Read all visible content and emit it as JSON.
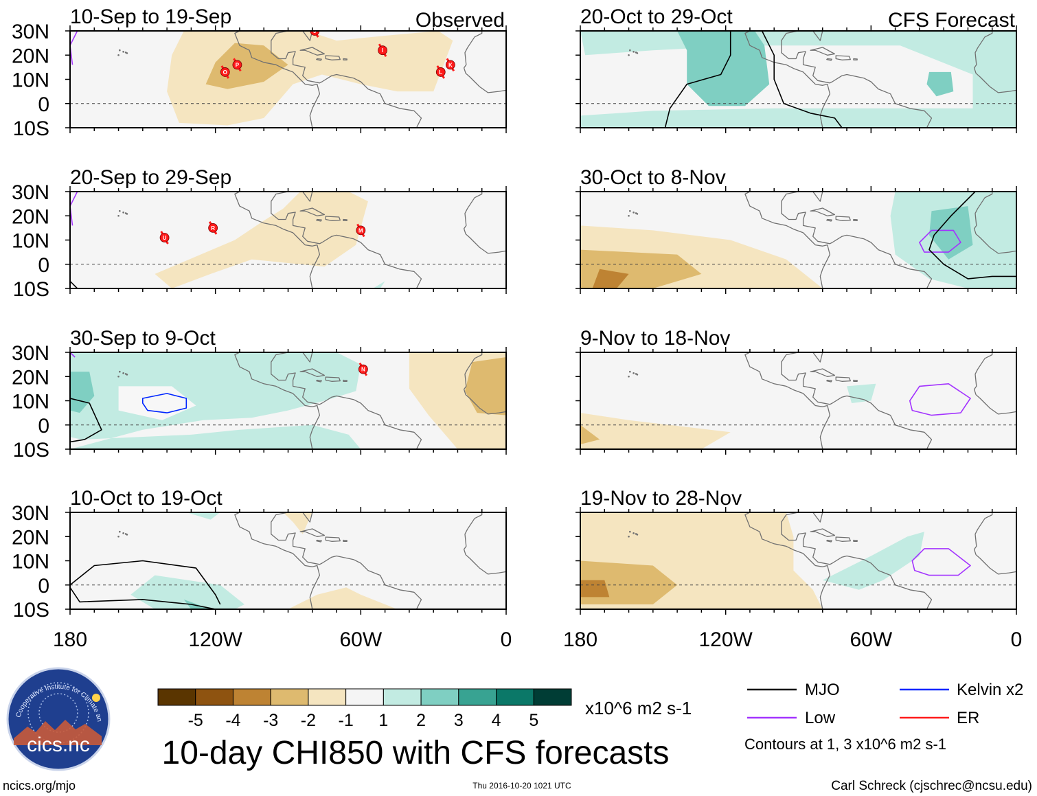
{
  "colors": {
    "brown": [
      "#5a3500",
      "#8e5310",
      "#be8333",
      "#deba6f",
      "#f5e5c0"
    ],
    "neutral": "#f5f5f5",
    "teal": [
      "#c2ebe2",
      "#7fcfc2",
      "#38a392",
      "#0b7868",
      "#003d35"
    ],
    "mjo": "#000000",
    "kelvin": "#0026ff",
    "low": "#a333ff",
    "er": "#ff1a1a",
    "land_outline": "#707070"
  },
  "lat_labels": [
    "30N",
    "20N",
    "10N",
    "0",
    "10S"
  ],
  "lon_labels": [
    "180",
    "120W",
    "60W",
    "0"
  ],
  "panels": [
    {
      "column": 0,
      "row": 0,
      "title": "10-Sep to 19-Sep",
      "right_label": "Observed",
      "storms": [
        {
          "id": "O",
          "lon": -116,
          "lat": 13
        },
        {
          "id": "P",
          "lon": -111,
          "lat": 16
        },
        {
          "id": "I",
          "lon": -51,
          "lat": 22
        },
        {
          "id": "L",
          "lon": -27,
          "lat": 13
        },
        {
          "id": "K",
          "lon": -23,
          "lat": 16
        },
        {
          "id": "J",
          "lon": -79,
          "lat": 30
        }
      ]
    },
    {
      "column": 0,
      "row": 1,
      "title": "20-Sep to 29-Sep",
      "right_label": "",
      "storms": [
        {
          "id": "U",
          "lon": -141,
          "lat": 11
        },
        {
          "id": "R",
          "lon": -121,
          "lat": 15
        },
        {
          "id": "M",
          "lon": -60,
          "lat": 14
        }
      ]
    },
    {
      "column": 0,
      "row": 2,
      "title": "30-Sep to 9-Oct",
      "right_label": "",
      "storms": [
        {
          "id": "N",
          "lon": -59,
          "lat": 23
        }
      ]
    },
    {
      "column": 0,
      "row": 3,
      "title": "10-Oct to 19-Oct",
      "right_label": "",
      "storms": []
    },
    {
      "column": 1,
      "row": 0,
      "title": "20-Oct to 29-Oct",
      "right_label": "CFS Forecast",
      "storms": []
    },
    {
      "column": 1,
      "row": 1,
      "title": "30-Oct to 8-Nov",
      "right_label": "",
      "storms": []
    },
    {
      "column": 1,
      "row": 2,
      "title": "9-Nov to 18-Nov",
      "right_label": "",
      "storms": []
    },
    {
      "column": 1,
      "row": 3,
      "title": "19-Nov to 28-Nov",
      "right_label": "",
      "storms": []
    }
  ],
  "colorbar": {
    "tick_labels": [
      "-5",
      "-4",
      "-3",
      "-2",
      "-1",
      "1",
      "2",
      "3",
      "4",
      "5"
    ],
    "units": "x10^6 m2 s-1"
  },
  "main_title": "10-day CHI850 with CFS forecasts",
  "legend": {
    "items": [
      {
        "label": "MJO",
        "color": "#000000"
      },
      {
        "label": "Kelvin x2",
        "color": "#0026ff"
      },
      {
        "label": "Low",
        "color": "#a333ff"
      },
      {
        "label": "ER",
        "color": "#ff1a1a"
      }
    ],
    "note": "Contours at 1, 3 x10^6 m2 s-1"
  },
  "logo_text": "cics.nc",
  "logo_ring_text": "Cooperative Institute for Climate and Satellites",
  "footer": {
    "left": "ncics.org/mjo",
    "center": "Thu 2016-10-20 1021 UTC",
    "right": "Carl Schreck (cjschrec@ncsu.edu)"
  }
}
